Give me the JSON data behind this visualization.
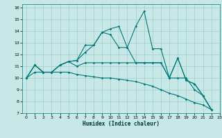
{
  "xlabel": "Humidex (Indice chaleur)",
  "bg_color": "#c8e8e8",
  "grid_color": "#9ccece",
  "line_color": "#007878",
  "xlim": [
    -0.5,
    23
  ],
  "ylim": [
    7,
    16.3
  ],
  "xticks": [
    0,
    1,
    2,
    3,
    4,
    5,
    6,
    7,
    8,
    9,
    10,
    11,
    12,
    13,
    14,
    15,
    16,
    17,
    18,
    19,
    20,
    21,
    22,
    23
  ],
  "yticks": [
    7,
    8,
    9,
    10,
    11,
    12,
    13,
    14,
    15,
    16
  ],
  "series": [
    [
      10.0,
      11.1,
      10.5,
      10.5,
      11.1,
      11.4,
      11.5,
      12.8,
      12.8,
      13.9,
      14.2,
      14.4,
      12.6,
      11.3,
      11.3,
      11.3,
      11.3,
      10.0,
      11.7,
      9.8,
      9.5,
      8.5,
      7.3
    ],
    [
      10.0,
      11.1,
      10.5,
      10.5,
      11.1,
      11.4,
      11.5,
      12.2,
      12.8,
      13.9,
      13.7,
      12.6,
      12.6,
      14.4,
      15.7,
      12.5,
      12.5,
      10.0,
      11.7,
      9.8,
      9.5,
      8.5,
      7.3
    ],
    [
      10.0,
      11.1,
      10.5,
      10.5,
      11.1,
      11.4,
      11.0,
      11.3,
      11.3,
      11.3,
      11.3,
      11.3,
      11.3,
      11.3,
      11.3,
      11.3,
      11.3,
      10.0,
      10.0,
      10.0,
      9.0,
      8.5,
      7.3
    ],
    [
      10.0,
      10.5,
      10.5,
      10.5,
      10.5,
      10.5,
      10.3,
      10.2,
      10.1,
      10.0,
      10.0,
      9.9,
      9.8,
      9.7,
      9.5,
      9.3,
      9.0,
      8.7,
      8.5,
      8.2,
      7.9,
      7.7,
      7.3
    ]
  ]
}
